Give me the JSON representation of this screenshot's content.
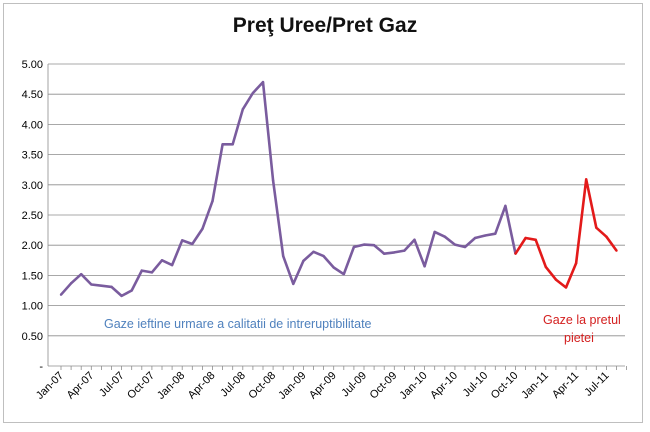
{
  "chart_data": {
    "type": "line",
    "title": "Preţ Uree/Pret Gaz",
    "xlabel": "",
    "ylabel": "",
    "ylim": [
      0,
      5
    ],
    "yticks": [
      "-",
      "0.50",
      "1.00",
      "1.50",
      "2.00",
      "2.50",
      "3.00",
      "3.50",
      "4.00",
      "4.50",
      "5.00"
    ],
    "ytick_values": [
      0,
      0.5,
      1.0,
      1.5,
      2.0,
      2.5,
      3.0,
      3.5,
      4.0,
      4.5,
      5.0
    ],
    "xticks": [
      "Jan-07",
      "Apr-07",
      "Jul-07",
      "Oct-07",
      "Jan-08",
      "Apr-08",
      "Jul-08",
      "Oct-08",
      "Jan-09",
      "Apr-09",
      "Jul-09",
      "Oct-09",
      "Jan-10",
      "Apr-10",
      "Jul-10",
      "Oct-10",
      "Jan-11",
      "Apr-11",
      "Jul-11"
    ],
    "grid": true,
    "series": [
      {
        "color": "#7a5c9e",
        "x": [
          "Jan-07",
          "Feb-07",
          "Mar-07",
          "Apr-07",
          "May-07",
          "Jun-07",
          "Jul-07",
          "Aug-07",
          "Sep-07",
          "Oct-07",
          "Nov-07",
          "Dec-07",
          "Jan-08",
          "Feb-08",
          "Mar-08",
          "Apr-08",
          "May-08",
          "Jun-08",
          "Jul-08",
          "Aug-08",
          "Sep-08",
          "Oct-08",
          "Nov-08",
          "Dec-08",
          "Jan-09",
          "Feb-09",
          "Mar-09",
          "Apr-09",
          "May-09",
          "Jun-09",
          "Jul-09",
          "Aug-09",
          "Sep-09",
          "Oct-09",
          "Nov-09",
          "Dec-09",
          "Jan-10",
          "Feb-10",
          "Mar-10",
          "Apr-10",
          "May-10",
          "Jun-10",
          "Jul-10",
          "Aug-10",
          "Sep-10",
          "Oct-10"
        ],
        "values": [
          1.18,
          1.37,
          1.52,
          1.35,
          1.33,
          1.31,
          1.16,
          1.25,
          1.58,
          1.55,
          1.75,
          1.67,
          2.08,
          2.02,
          2.27,
          2.73,
          3.67,
          3.67,
          4.25,
          4.52,
          4.7,
          3.07,
          1.82,
          1.36,
          1.74,
          1.89,
          1.82,
          1.63,
          1.52,
          1.97,
          2.01,
          2.0,
          1.86,
          1.88,
          1.91,
          2.09,
          1.65,
          2.22,
          2.14,
          2.01,
          1.97,
          2.12,
          2.16,
          2.19,
          2.65,
          1.86
        ]
      },
      {
        "color": "#e31a1a",
        "x": [
          "Oct-10",
          "Nov-10",
          "Dec-10",
          "Jan-11",
          "Feb-11",
          "Mar-11",
          "Apr-11",
          "May-11",
          "Jun-11",
          "Jul-11",
          "Aug-11",
          "Sep-11"
        ],
        "values": [
          1.86,
          2.12,
          2.09,
          1.64,
          1.43,
          1.3,
          1.7,
          3.09,
          2.29,
          2.14,
          1.91,
          null
        ]
      }
    ],
    "annotations": [
      {
        "text": "Gaze ieftine urmare  a calitatii de intreruptibilitate",
        "color": "#4f81bd"
      },
      {
        "text_lines": [
          "Gaze la pretul",
          "pietei"
        ],
        "color": "#d42020"
      }
    ]
  }
}
